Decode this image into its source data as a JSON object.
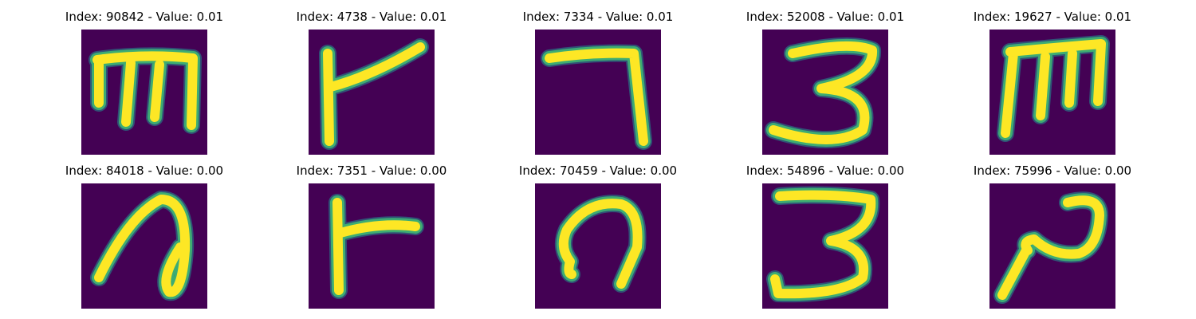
{
  "colors": {
    "background": "#440154",
    "stroke": "#fde725",
    "edge": "#3fbc73",
    "edge_outer": "#23898e"
  },
  "panels": [
    {
      "title": "Index: 90842 - Value: 0.01",
      "glyph": "m-shape-icon"
    },
    {
      "title": "Index: 4738 - Value: 0.01",
      "glyph": "flag-shape-icon"
    },
    {
      "title": "Index: 7334 - Value: 0.01",
      "glyph": "hook-seven-icon"
    },
    {
      "title": "Index: 52008 - Value: 0.01",
      "glyph": "three-shape-icon"
    },
    {
      "title": "Index: 19627 - Value: 0.01",
      "glyph": "m-shape-icon"
    },
    {
      "title": "Index: 84018 - Value: 0.00",
      "glyph": "loop-shape-icon"
    },
    {
      "title": "Index: 7351 - Value: 0.00",
      "glyph": "flag-shape-icon"
    },
    {
      "title": "Index: 70459 - Value: 0.00",
      "glyph": "arch-shape-icon"
    },
    {
      "title": "Index: 54896 - Value: 0.00",
      "glyph": "three-shape-icon"
    },
    {
      "title": "Index: 75996 - Value: 0.00",
      "glyph": "z-shape-icon"
    }
  ]
}
